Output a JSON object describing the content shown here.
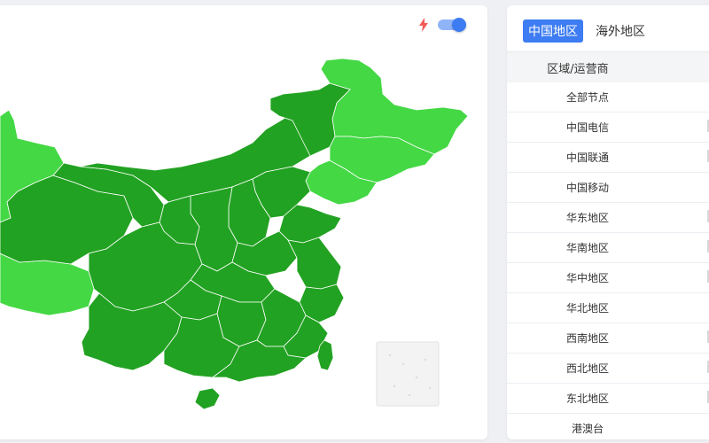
{
  "map": {
    "colors": {
      "dark": "#22a222",
      "light": "#44d844",
      "border": "#ffffff",
      "inset_bg": "#f3f3f3"
    },
    "toggle": {
      "state": "on",
      "icon": "lightning-bolt-icon",
      "accent": "#3d7cf2"
    }
  },
  "tabs": [
    {
      "label": "中国地区",
      "active": true
    },
    {
      "label": "海外地区",
      "active": false
    }
  ],
  "table": {
    "header": "区域/运营商",
    "rows": [
      {
        "label": "全部节点",
        "cut": false
      },
      {
        "label": "中国电信",
        "cut": true
      },
      {
        "label": "中国联通",
        "cut": true
      },
      {
        "label": "中国移动",
        "cut": false
      },
      {
        "label": "华东地区",
        "cut": true
      },
      {
        "label": "华南地区",
        "cut": true
      },
      {
        "label": "华中地区",
        "cut": true
      },
      {
        "label": "华北地区",
        "cut": false
      },
      {
        "label": "西南地区",
        "cut": true
      },
      {
        "label": "西北地区",
        "cut": true
      },
      {
        "label": "东北地区",
        "cut": true
      },
      {
        "label": "港澳台",
        "cut": false
      }
    ]
  }
}
